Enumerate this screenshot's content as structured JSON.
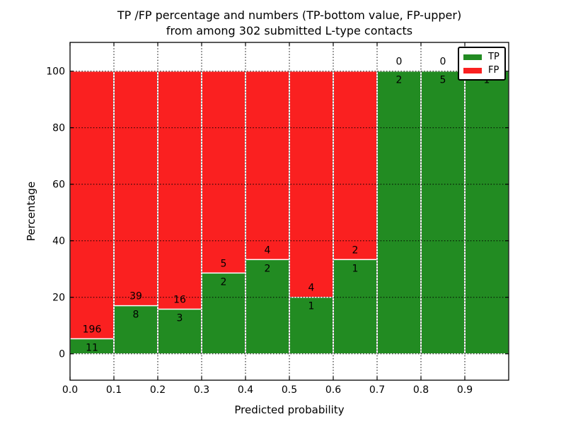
{
  "title": {
    "line1": "TP /FP percentage and numbers (TP-bottom value, FP-upper)",
    "line2": "from among 302 submitted L-type contacts"
  },
  "axes": {
    "xlabel": "Predicted probability",
    "ylabel": "Percentage",
    "x_tick_labels": [
      "0.0",
      "0.1",
      "0.2",
      "0.3",
      "0.4",
      "0.5",
      "0.6",
      "0.7",
      "0.8",
      "0.9"
    ],
    "y_tick_labels": [
      "0",
      "20",
      "40",
      "60",
      "80",
      "100"
    ]
  },
  "legend": {
    "items": [
      {
        "label": "TP",
        "color": "#228b22"
      },
      {
        "label": "FP",
        "color": "#fa2020"
      }
    ]
  },
  "chart_data": {
    "type": "bar",
    "stacked": true,
    "orientation": "vertical",
    "title": "TP /FP percentage and numbers (TP-bottom value, FP-upper) from among 302 submitted L-type contacts",
    "xlabel": "Predicted probability",
    "ylabel": "Percentage",
    "xlim": [
      0.0,
      1.0
    ],
    "ylim": [
      -9.3,
      110.2
    ],
    "x_ticks": [
      0.0,
      0.1,
      0.2,
      0.3,
      0.4,
      0.5,
      0.6,
      0.7,
      0.8,
      0.9
    ],
    "y_ticks": [
      0,
      20,
      40,
      60,
      80,
      100
    ],
    "x_bin_edges": [
      0.0,
      0.1,
      0.2,
      0.3,
      0.4,
      0.5,
      0.6,
      0.7,
      0.8,
      0.9,
      1.0
    ],
    "grid": true,
    "legend_position": "upper right",
    "total_submitted": 302,
    "series": [
      {
        "name": "TP",
        "color": "#228b22",
        "counts": [
          11,
          8,
          3,
          2,
          2,
          1,
          1,
          2,
          5,
          1
        ]
      },
      {
        "name": "FP",
        "color": "#fa2020",
        "counts": [
          196,
          39,
          16,
          5,
          4,
          4,
          2,
          0,
          0,
          0
        ]
      }
    ],
    "tp_percentages": [
      5.3,
      17.0,
      15.8,
      28.6,
      33.3,
      20.0,
      33.3,
      100.0,
      100.0,
      100.0
    ]
  }
}
